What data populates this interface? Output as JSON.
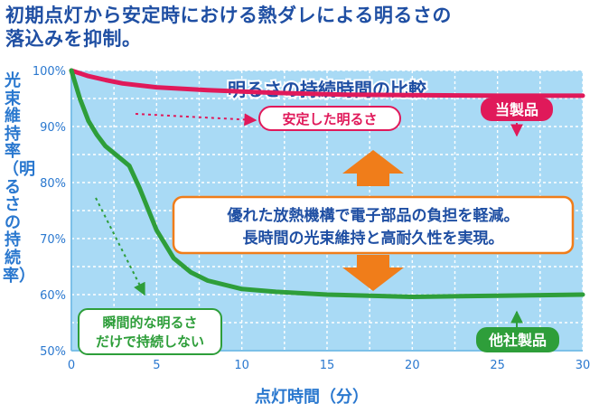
{
  "headline": {
    "line1": "初期点灯から安定時における熱ダレによる明るさの",
    "line2": "落込みを抑制。"
  },
  "chart_data": {
    "type": "line",
    "title": "明るさの持続時間の比較",
    "xlabel": "点灯時間（分）",
    "ylabel": "光束維持率（明るさの持続率）",
    "xlim": [
      0,
      30
    ],
    "ylim": [
      50,
      100
    ],
    "xticks": [
      0,
      5,
      10,
      15,
      20,
      25,
      30
    ],
    "yticks": [
      50,
      60,
      70,
      80,
      90,
      100
    ],
    "ytick_labels": [
      "50%",
      "60%",
      "70%",
      "80%",
      "90%",
      "100%"
    ],
    "grid": true,
    "series": [
      {
        "name": "当製品",
        "color": "#e0195a",
        "x": [
          0,
          1,
          2,
          3,
          5,
          8,
          12,
          16,
          20,
          25,
          30
        ],
        "y": [
          100,
          99,
          98.3,
          97.7,
          97,
          96.5,
          96,
          95.7,
          95.6,
          95.5,
          95.5
        ]
      },
      {
        "name": "他社製品",
        "color": "#2e9e3a",
        "x": [
          0,
          0.5,
          1,
          1.5,
          2,
          3,
          3.4,
          4,
          5,
          6,
          7,
          8,
          10,
          12,
          15,
          20,
          25,
          30
        ],
        "y": [
          100,
          95,
          91,
          88.5,
          86.5,
          84,
          83,
          79,
          71.5,
          66.5,
          64,
          62.5,
          61,
          60.5,
          60,
          59.6,
          59.8,
          60
        ]
      }
    ],
    "annotations": {
      "stable": "安定した明るさ",
      "instant": [
        "瞬間的な明るさ",
        "だけで持続しない"
      ],
      "message": [
        "優れた放熱機構で電子部品の負担を軽減。",
        "長時間の光束維持と高耐久性を実現。"
      ]
    },
    "colors": {
      "plot_bg": "#a9daf5",
      "grid": "#ffffff",
      "accent_blue": "#1f4fa3",
      "label_blue": "#2a78cf",
      "arrow_orange": "#f07d1a"
    }
  }
}
